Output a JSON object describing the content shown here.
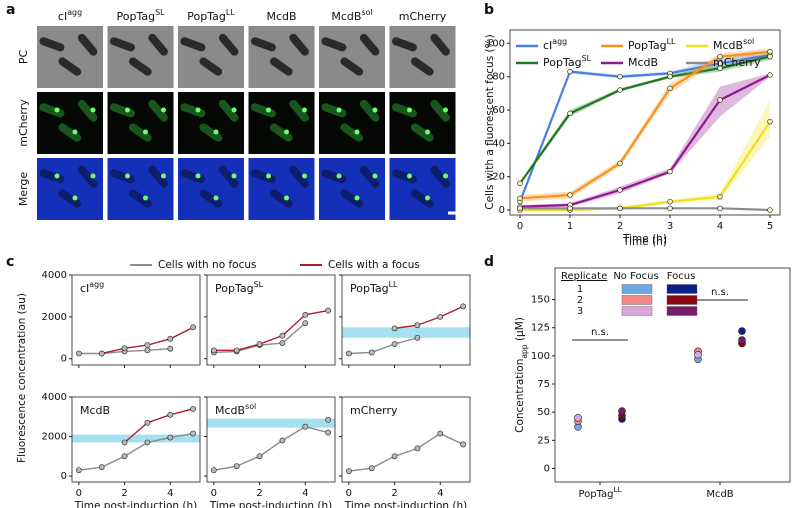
{
  "panel_labels": [
    "a",
    "b",
    "c",
    "d"
  ],
  "micrograph": {
    "columns": [
      {
        "name": "cI",
        "name_sup": "agg"
      },
      {
        "name": "PopTag",
        "name_sup": "SL"
      },
      {
        "name": "PopTag",
        "name_sup": "LL"
      },
      {
        "name": "McdB"
      },
      {
        "name": "McdB",
        "name_sup": "sol"
      },
      {
        "name": "mCherry"
      }
    ],
    "rows": [
      "PC",
      "mCherry",
      "Merge"
    ]
  },
  "chart_data": [
    {
      "type": "line",
      "xlabel": "Time (h)",
      "ylabel": "Cells with a fluorescent focus (%)",
      "x": [
        0,
        1,
        2,
        3,
        4,
        5
      ],
      "xlim": [
        -0.2,
        5.2
      ],
      "xticks": [
        0,
        1,
        2,
        3,
        4,
        5
      ],
      "ylim": [
        -3,
        108
      ],
      "yticks": [
        0,
        20,
        40,
        60,
        80,
        100
      ],
      "legend": "upper left",
      "series": [
        {
          "name": "cI",
          "name_sup": "agg",
          "color": "#4a7ee0",
          "values": [
            5,
            83,
            80,
            82,
            88,
            93
          ],
          "band_low": [
            3,
            82,
            79,
            81,
            85,
            92
          ],
          "band_high": [
            7,
            84,
            81,
            83,
            91,
            95
          ]
        },
        {
          "name": "PopTag",
          "name_sup": "SL",
          "color": "#1f7a1f",
          "values": [
            16,
            58,
            72,
            80,
            85,
            92
          ],
          "band_low": [
            15,
            56,
            71,
            79,
            83,
            90
          ],
          "band_high": [
            17,
            60,
            73,
            81,
            87,
            93
          ]
        },
        {
          "name": "PopTag",
          "name_sup": "LL",
          "color": "#f7931e",
          "values": [
            7,
            9,
            28,
            73,
            92,
            95
          ],
          "band_low": [
            5,
            7,
            26,
            70,
            90,
            93
          ],
          "band_high": [
            9,
            11,
            30,
            76,
            94,
            97
          ]
        },
        {
          "name": "McdB",
          "color": "#8e1a8e",
          "values": [
            2,
            3,
            12,
            23,
            66,
            81
          ],
          "band_low": [
            1,
            2,
            10,
            22,
            56,
            80
          ],
          "band_high": [
            3,
            4,
            14,
            25,
            74,
            82
          ]
        },
        {
          "name": "McdB",
          "name_sup": "sol",
          "color": "#f2e01c",
          "values": [
            0,
            0,
            1,
            5,
            8,
            53
          ],
          "band_low": [
            0,
            0,
            0,
            4,
            6,
            44
          ],
          "band_high": [
            1,
            1,
            2,
            6,
            10,
            66
          ]
        },
        {
          "name": "mCherry",
          "color": "#8c8c8c",
          "values": [
            1,
            1,
            1,
            1,
            1,
            0
          ]
        }
      ]
    },
    {
      "type": "line",
      "title": "cI",
      "title_sup": "agg",
      "ylabel": "Fluorescence concentration (au)",
      "x": [
        0,
        1,
        2,
        3,
        4,
        5
      ],
      "xlim": [
        -0.3,
        5.3
      ],
      "xticks": [
        0,
        2,
        4
      ],
      "ylim": [
        -300,
        4000
      ],
      "yticks": [
        0,
        2000,
        4000
      ],
      "series": [
        {
          "name": "Cells with no focus",
          "color": "#8c8c8c",
          "values": [
            250,
            250,
            350,
            400,
            480,
            null
          ]
        },
        {
          "name": "Cells with a focus",
          "color": "#b01c2e",
          "values": [
            null,
            250,
            500,
            650,
            950,
            1500
          ]
        }
      ]
    },
    {
      "type": "line",
      "title": "PopTag",
      "title_sup": "SL",
      "x": [
        0,
        1,
        2,
        3,
        4,
        5
      ],
      "xlim": [
        -0.3,
        5.3
      ],
      "xticks": [
        0,
        2,
        4
      ],
      "ylim": [
        -300,
        4000
      ],
      "yticks": [
        0,
        2000,
        4000
      ],
      "series": [
        {
          "color": "#8c8c8c",
          "values": [
            300,
            350,
            650,
            750,
            1700,
            null
          ]
        },
        {
          "color": "#b01c2e",
          "values": [
            400,
            400,
            700,
            1100,
            2100,
            2300
          ]
        }
      ]
    },
    {
      "type": "line",
      "title": "PopTag",
      "title_sup": "LL",
      "threshold": [
        1000,
        1500
      ],
      "x": [
        0,
        1,
        2,
        3,
        4,
        5
      ],
      "xlim": [
        -0.3,
        5.3
      ],
      "xticks": [
        0,
        2,
        4
      ],
      "ylim": [
        -300,
        4000
      ],
      "yticks": [
        0,
        2000,
        4000
      ],
      "series": [
        {
          "color": "#8c8c8c",
          "values": [
            250,
            300,
            700,
            1000,
            null,
            null
          ]
        },
        {
          "color": "#b01c2e",
          "values": [
            null,
            null,
            1450,
            1600,
            2000,
            2500
          ]
        }
      ]
    },
    {
      "type": "line",
      "title": "McdB",
      "threshold": [
        1700,
        2100
      ],
      "xlabel": "Time post-induction (h)",
      "x": [
        0,
        1,
        2,
        3,
        4,
        5
      ],
      "xlim": [
        -0.3,
        5.3
      ],
      "xticks": [
        0,
        2,
        4
      ],
      "ylim": [
        -300,
        4000
      ],
      "yticks": [
        0,
        2000,
        4000
      ],
      "series": [
        {
          "color": "#8c8c8c",
          "values": [
            300,
            450,
            1000,
            1700,
            1950,
            2150
          ]
        },
        {
          "color": "#b01c2e",
          "values": [
            null,
            null,
            1700,
            2700,
            3100,
            3400
          ]
        }
      ]
    },
    {
      "type": "line",
      "title": "McdB",
      "title_sup": "sol",
      "threshold": [
        2450,
        2900
      ],
      "xlabel": "Time post-induction (h)",
      "x": [
        0,
        1,
        2,
        3,
        4,
        5
      ],
      "xlim": [
        -0.3,
        5.3
      ],
      "xticks": [
        0,
        2,
        4
      ],
      "ylim": [
        -300,
        4000
      ],
      "yticks": [
        0,
        2000,
        4000
      ],
      "series": [
        {
          "color": "#8c8c8c",
          "values": [
            300,
            500,
            1000,
            1800,
            2500,
            2200
          ]
        },
        {
          "color": "#b01c2e",
          "values": [
            null,
            null,
            null,
            null,
            null,
            2850
          ]
        }
      ]
    },
    {
      "type": "line",
      "title": "mCherry",
      "xlabel": "Time post-induction (h)",
      "x": [
        0,
        1,
        2,
        3,
        4,
        5
      ],
      "xlim": [
        -0.3,
        5.3
      ],
      "xticks": [
        0,
        2,
        4
      ],
      "ylim": [
        -300,
        4000
      ],
      "yticks": [
        0,
        2000,
        4000
      ],
      "series": [
        {
          "color": "#8c8c8c",
          "values": [
            250,
            400,
            1000,
            1400,
            2150,
            1600
          ]
        }
      ]
    },
    {
      "type": "strip",
      "ylabel": "Concentration",
      "ylabel_sub": "app",
      "ylabel_unit": " (µM)",
      "categories": [
        {
          "name": "PopTag",
          "name_sup": "LL"
        },
        {
          "name": "McdB"
        }
      ],
      "ylim": [
        -12,
        178
      ],
      "yticks": [
        0,
        25,
        50,
        75,
        100,
        125,
        150
      ],
      "legend_title": "Replicate",
      "replicates": [
        "1",
        "2",
        "3"
      ],
      "annotations": [
        "n.s.",
        "n.s."
      ],
      "series": [
        {
          "name": "No Focus",
          "colors": [
            "#6fa8e8",
            "#f08a8a",
            "#dba6dd"
          ],
          "values": [
            [
              37,
              97
            ],
            [
              42,
              104
            ],
            [
              45,
              101
            ]
          ]
        },
        {
          "name": "Focus",
          "colors": [
            "#0b1f8c",
            "#8b0a12",
            "#7a1a6b"
          ],
          "values": [
            [
              44,
              122
            ],
            [
              47,
              111
            ],
            [
              51,
              114
            ]
          ]
        }
      ]
    }
  ]
}
